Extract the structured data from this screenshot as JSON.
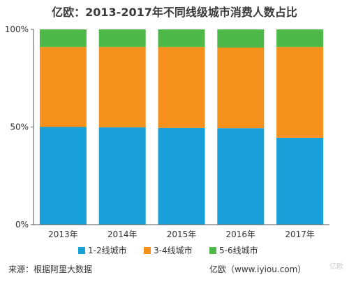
{
  "chart_data": {
    "type": "bar",
    "stacked": true,
    "title": "亿欧：2013-2017年不同线级城市消费人数占比",
    "categories": [
      "2013年",
      "2014年",
      "2015年",
      "2016年",
      "2017年"
    ],
    "series": [
      {
        "name": "1-2线城市",
        "color": "#1aa0d8",
        "values": [
          50,
          49.8,
          49.5,
          49.4,
          44.5
        ]
      },
      {
        "name": "3-4线城市",
        "color": "#f7911e",
        "values": [
          41,
          41.2,
          41.5,
          41.3,
          46.5
        ]
      },
      {
        "name": "5-6线城市",
        "color": "#4eb848",
        "values": [
          9,
          9,
          9,
          9.3,
          9
        ]
      }
    ],
    "yticks": [
      "0%",
      "50%",
      "100%"
    ],
    "ylim": [
      0,
      100
    ],
    "grid": false,
    "legend": "bottom"
  },
  "footer": {
    "source": "来源：根据阿里大数据",
    "brand": "亿欧（www.iyiou.com）"
  },
  "watermark": "亿欧"
}
